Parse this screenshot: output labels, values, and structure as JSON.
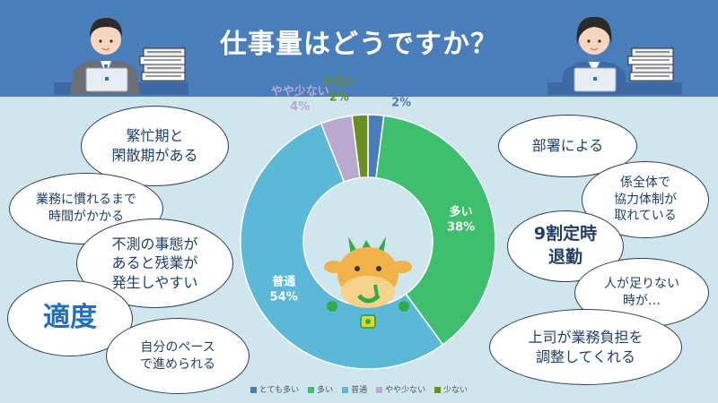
{
  "header": {
    "title": "仕事量はどうですか？"
  },
  "bubbles_left": [
    {
      "text": "繁忙期と\n閑散期がある"
    },
    {
      "text": "業務に慣れるまで\n時間がかかる"
    },
    {
      "text": "不測の事態が\nあると残業が\n発生しやすい"
    },
    {
      "text": "適度"
    },
    {
      "text": "自分のペース\nで進められる"
    }
  ],
  "bubbles_right": [
    {
      "text": "部署による"
    },
    {
      "text": "係全体で\n協力体制が\n取れている"
    },
    {
      "text": "9割定時\n退勤"
    },
    {
      "text": "人が足りない\n時が…"
    },
    {
      "text": "上司が業務負担を\n調整してくれる"
    }
  ],
  "chart_data": {
    "type": "pie",
    "donut": true,
    "categories": [
      "とても多い",
      "多い",
      "普通",
      "やや少ない",
      "少ない"
    ],
    "values": [
      2,
      38,
      54,
      4,
      2
    ],
    "value_labels": [
      "2%",
      "38%",
      "54%",
      "4%",
      "2%"
    ],
    "colors": [
      "#4a7dbb",
      "#3dbf6e",
      "#5bb8d6",
      "#b9a8cf",
      "#6b8e23"
    ],
    "legend": "bottom"
  },
  "mascot": {
    "name": "cow-mascot"
  }
}
